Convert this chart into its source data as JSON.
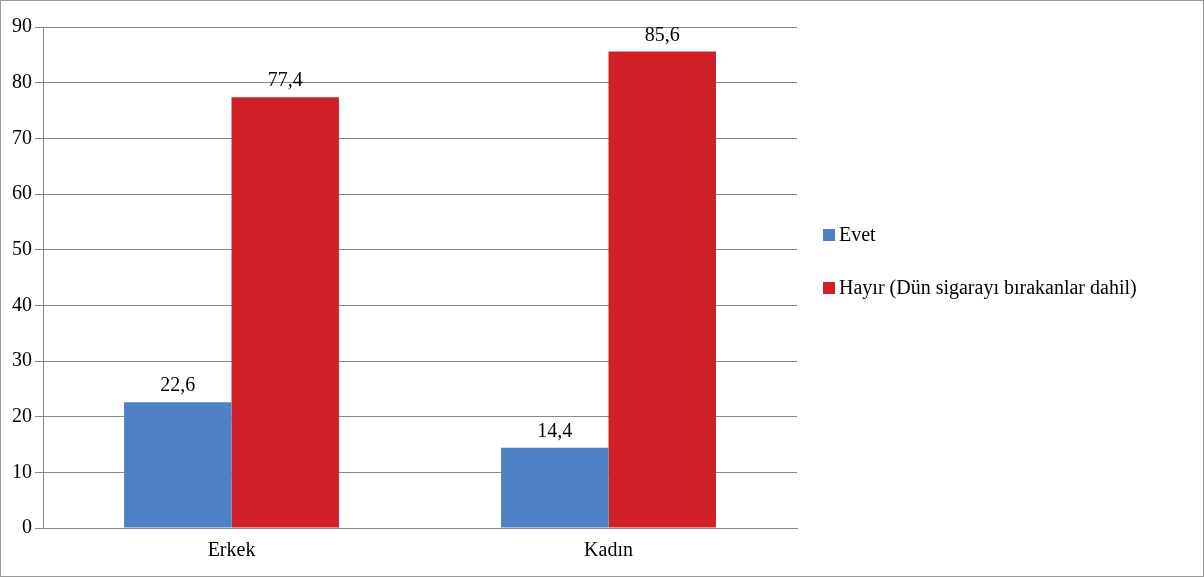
{
  "chart_data": {
    "type": "bar",
    "categories": [
      "Erkek",
      "Kadın"
    ],
    "series": [
      {
        "name": "Evet",
        "color": "#4f81c7",
        "values": [
          22.6,
          14.4
        ],
        "value_labels": [
          "22,6",
          "14,4"
        ]
      },
      {
        "name": "Hayır (Dün sigarayı bırakanlar dahil)",
        "color": "#cf2027",
        "values": [
          77.4,
          85.6
        ],
        "value_labels": [
          "77,4",
          "85,6"
        ]
      }
    ],
    "ylim": [
      0,
      90
    ],
    "yticks": [
      0,
      10,
      20,
      30,
      40,
      50,
      60,
      70,
      80,
      90
    ],
    "grid": "y",
    "legend": "right"
  }
}
